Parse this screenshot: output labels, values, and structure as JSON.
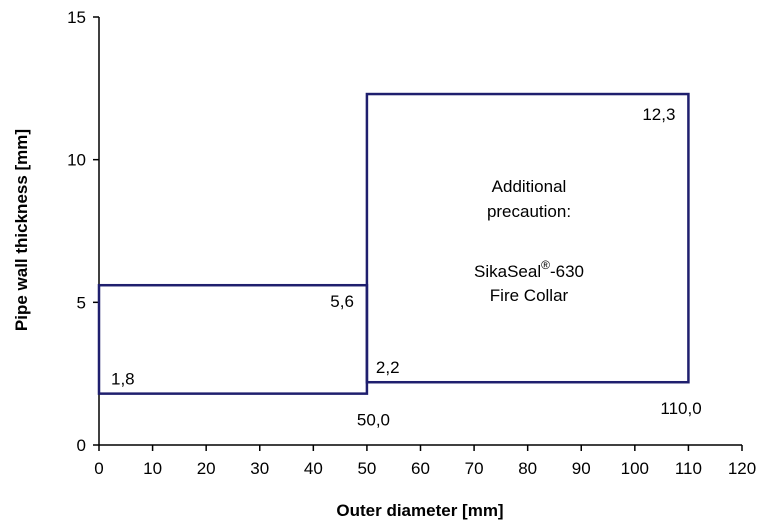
{
  "chart_data": {
    "type": "line",
    "title": "",
    "xlabel": "Outer diameter [mm]",
    "ylabel": "Pipe wall thickness [mm]",
    "xlim": [
      0,
      120
    ],
    "ylim": [
      0,
      15
    ],
    "xticks": [
      0,
      10,
      20,
      30,
      40,
      50,
      60,
      70,
      80,
      90,
      100,
      110,
      120
    ],
    "yticks": [
      0,
      5,
      10,
      15
    ],
    "grid": false,
    "legend": "none",
    "series_color": "#1f1f6e",
    "regions": [
      {
        "name": "zone-small-pipes",
        "x": [
          0,
          50
        ],
        "y": [
          1.8,
          5.6
        ]
      },
      {
        "name": "zone-large-pipes",
        "x": [
          50,
          110
        ],
        "y": [
          2.2,
          12.3
        ]
      }
    ],
    "data_labels": [
      {
        "text": "1,8",
        "x": 0,
        "y": 1.8
      },
      {
        "text": "5,6",
        "x": 50,
        "y": 5.6
      },
      {
        "text": "50,0",
        "x": 50,
        "y": 1.8
      },
      {
        "text": "2,2",
        "x": 50,
        "y": 2.2
      },
      {
        "text": "12,3",
        "x": 110,
        "y": 12.3
      },
      {
        "text": "110,0",
        "x": 110,
        "y": 2.2
      }
    ],
    "annotation": {
      "line1": "Additional",
      "line2": "precaution:",
      "line3_prefix": "SikaSeal",
      "line3_sup": "®",
      "line3_suffix": "-630",
      "line4": "Fire Collar"
    }
  }
}
